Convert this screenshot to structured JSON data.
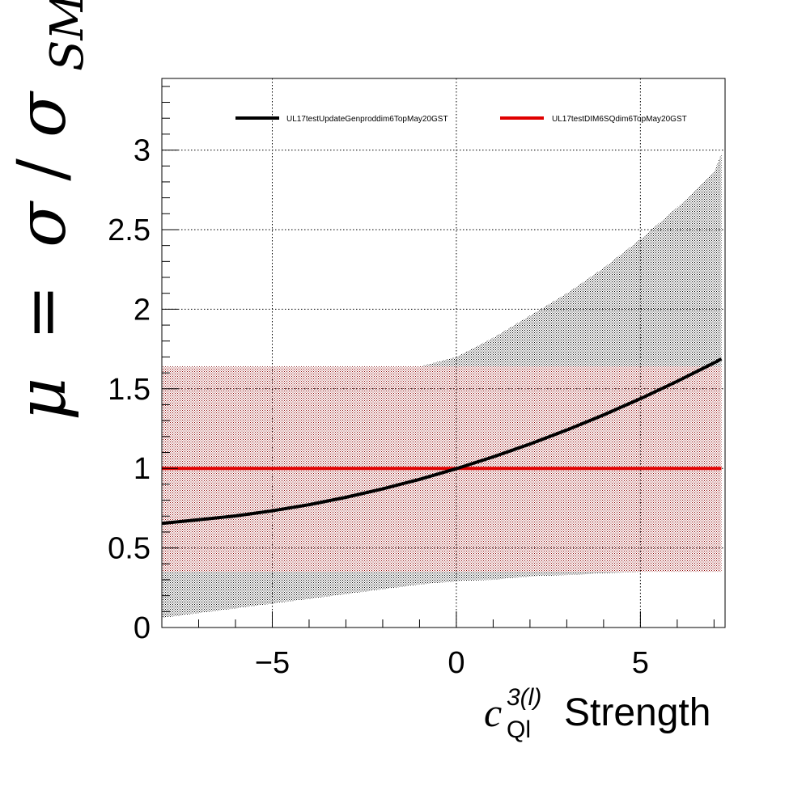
{
  "chart_data": {
    "type": "line",
    "title": "",
    "xlabel": {
      "symbol": "c",
      "superscript": "3(l)",
      "subscript": "Ql",
      "text": "Strength"
    },
    "ylabel": {
      "mu": "μ",
      "equals": "=",
      "sigma": "σ",
      "slash": "/",
      "sigma2": "σ",
      "subscript": "SM"
    },
    "xlim": [
      -8,
      7.3
    ],
    "ylim": [
      0,
      3.45
    ],
    "x_ticks": [
      -5,
      0,
      5
    ],
    "x_tick_labels": [
      "−5",
      "0",
      "5"
    ],
    "y_ticks": [
      0,
      0.5,
      1,
      1.5,
      2,
      2.5,
      3
    ],
    "y_tick_labels": [
      "0",
      "0.5",
      "1",
      "1.5",
      "2",
      "2.5",
      "3"
    ],
    "grid": true,
    "legend_position": "top",
    "colors": {
      "series1": "#000000",
      "series2": "#e00000",
      "band1": "#000000",
      "band2": "#8b0000"
    },
    "series": [
      {
        "name": "UL17testUpdateGenproddim6TopMay20GST",
        "x": [
          -8,
          -7,
          -6,
          -5,
          -4,
          -3,
          -2,
          -1,
          0,
          1,
          2,
          3,
          4,
          5,
          6,
          7,
          7.2
        ],
        "y": [
          0.654,
          0.677,
          0.701,
          0.733,
          0.772,
          0.818,
          0.871,
          0.931,
          0.998,
          1.072,
          1.153,
          1.241,
          1.336,
          1.438,
          1.547,
          1.663,
          1.688
        ],
        "band_lower": [
          0.06,
          0.09,
          0.12,
          0.15,
          0.18,
          0.21,
          0.24,
          0.27,
          0.29,
          0.3,
          0.32,
          0.33,
          0.34,
          0.35,
          0.36,
          0.37,
          0.37
        ],
        "band_upper": [
          1.64,
          1.64,
          1.64,
          1.64,
          1.64,
          1.64,
          1.64,
          1.64,
          1.7,
          1.82,
          1.96,
          2.1,
          2.26,
          2.44,
          2.64,
          2.86,
          2.98
        ]
      },
      {
        "name": "UL17testDIM6SQdim6TopMay20GST",
        "x": [
          -8,
          7.2
        ],
        "y": [
          1.0,
          1.0
        ],
        "band_lower": [
          0.35,
          0.35
        ],
        "band_upper": [
          1.64,
          1.64
        ]
      }
    ]
  }
}
